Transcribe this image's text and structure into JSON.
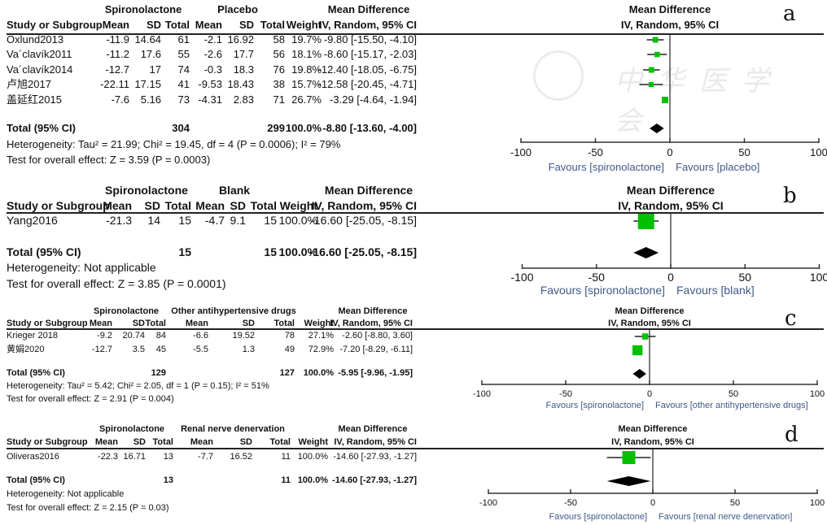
{
  "watermark": "中华医学会",
  "panels": [
    {
      "label": "a",
      "group1": "Spironolactone",
      "group2": "Placebo",
      "effect_header": "Mean Difference",
      "columns": [
        "Study or Subgroup",
        "Mean",
        "SD",
        "Total",
        "Mean",
        "SD",
        "Total",
        "Weight",
        "IV, Random, 95% CI"
      ],
      "rows": [
        [
          "Oxlund2013",
          "-11.9",
          "14.64",
          "61",
          "-2.1",
          "16.92",
          "58",
          "19.7%",
          "-9.80 [-15.50, -4.10]"
        ],
        [
          "Va´clavík2011",
          "-11.2",
          "17.6",
          "55",
          "-2.6",
          "17.7",
          "56",
          "18.1%",
          "-8.60 [-15.17, -2.03]"
        ],
        [
          "Va´clavík2014",
          "-12.7",
          "17",
          "74",
          "-0.3",
          "18.3",
          "76",
          "19.8%",
          "-12.40 [-18.05, -6.75]"
        ],
        [
          "卢旭2017",
          "-22.11",
          "17.15",
          "41",
          "-9.53",
          "18.43",
          "38",
          "15.7%",
          "-12.58 [-20.45, -4.71]"
        ],
        [
          "盖延红2015",
          "-7.6",
          "5.16",
          "73",
          "-4.31",
          "2.83",
          "71",
          "26.7%",
          "-3.29 [-4.64, -1.94]"
        ]
      ],
      "total": {
        "label": "Total (95% CI)",
        "n1": "304",
        "n2": "299",
        "weight": "100.0%",
        "md": "-8.80 [-13.60, -4.00]"
      },
      "heterogeneity": "Heterogeneity: Tau² = 21.99; Chi² = 19.45, df = 4 (P = 0.0006); I² = 79%",
      "overall": "Test for overall effect: Z = 3.59 (P = 0.0003)"
    },
    {
      "label": "b",
      "group1": "Spironolactone",
      "group2": "Blank",
      "effect_header": "Mean Difference",
      "columns": [
        "Study or Subgroup",
        "Mean",
        "SD",
        "Total",
        "Mean",
        "SD",
        "Total",
        "Weight",
        "IV, Random, 95% CI"
      ],
      "rows": [
        [
          "Yang2016",
          "-21.3",
          "14",
          "15",
          "-4.7",
          "9.1",
          "15",
          "100.0%",
          "-16.60 [-25.05, -8.15]"
        ]
      ],
      "total": {
        "label": "Total (95% CI)",
        "n1": "15",
        "n2": "15",
        "weight": "100.0%",
        "md": "-16.60 [-25.05, -8.15]"
      },
      "heterogeneity": "Heterogeneity: Not applicable",
      "overall": "Test for overall effect: Z = 3.85 (P = 0.0001)"
    },
    {
      "label": "c",
      "group1": "Spironolactone",
      "group2": "Other antihypertensive drugs",
      "effect_header": "Mean Difference",
      "columns": [
        "Study or Subgroup",
        "Mean",
        "SD",
        "Total",
        "Mean",
        "SD",
        "Total",
        "Weight",
        "IV, Random, 95% CI"
      ],
      "rows": [
        [
          "Krieger 2018",
          "-9.2",
          "20.74",
          "84",
          "-6.6",
          "19.52",
          "78",
          "27.1%",
          "-2.60 [-8.80, 3.60]"
        ],
        [
          "黄娟2020",
          "-12.7",
          "3.5",
          "45",
          "-5.5",
          "1.3",
          "49",
          "72.9%",
          "-7.20 [-8.29, -6.11]"
        ]
      ],
      "total": {
        "label": "Total (95% CI)",
        "n1": "129",
        "n2": "127",
        "weight": "100.0%",
        "md": "-5.95 [-9.96, -1.95]"
      },
      "heterogeneity": "Heterogeneity: Tau² = 5.42; Chi² = 2.05, df = 1 (P = 0.15); I² = 51%",
      "overall": "Test for overall effect: Z = 2.91 (P = 0.004)"
    },
    {
      "label": "d",
      "group1": "Spironolactone",
      "group2": "Renal nerve denervation",
      "effect_header": "Mean Difference",
      "columns": [
        "Study or Subgroup",
        "Mean",
        "SD",
        "Total",
        "Mean",
        "SD",
        "Total",
        "Weight",
        "IV, Random, 95% CI"
      ],
      "rows": [
        [
          "Oliveras2016",
          "-22.3",
          "16.71",
          "13",
          "-7.7",
          "16.52",
          "11",
          "100.0%",
          "-14.60 [-27.93, -1.27]"
        ]
      ],
      "total": {
        "label": "Total (95% CI)",
        "n1": "13",
        "n2": "11",
        "weight": "100.0%",
        "md": "-14.60 [-27.93, -1.27]"
      },
      "heterogeneity": "Heterogeneity: Not applicable",
      "overall": "Test for overall effect: Z = 2.15 (P = 0.03)"
    }
  ],
  "chart_data": [
    {
      "type": "forest",
      "label": "a",
      "title": "Mean Difference",
      "subtitle": "IV, Random, 95% CI",
      "xlim": [
        -100,
        100
      ],
      "ticks": [
        "-100",
        "-50",
        "0",
        "50",
        "100"
      ],
      "tick_values": [
        -100,
        -50,
        0,
        50,
        100
      ],
      "favours_left": "Favours [spironolactone]",
      "favours_right": "Favours [placebo]",
      "studies": [
        {
          "name": "Oxlund2013",
          "md": -9.8,
          "lo": -15.5,
          "hi": -4.1,
          "weight": 19.7
        },
        {
          "name": "Va´clavík2011",
          "md": -8.6,
          "lo": -15.17,
          "hi": -2.03,
          "weight": 18.1
        },
        {
          "name": "Va´clavík2014",
          "md": -12.4,
          "lo": -18.05,
          "hi": -6.75,
          "weight": 19.8
        },
        {
          "name": "卢旭2017",
          "md": -12.58,
          "lo": -20.45,
          "hi": -4.71,
          "weight": 15.7
        },
        {
          "name": "盖延红2015",
          "md": -3.29,
          "lo": -4.64,
          "hi": -1.94,
          "weight": 26.7
        }
      ],
      "pooled": {
        "md": -8.8,
        "lo": -13.6,
        "hi": -4.0
      }
    },
    {
      "type": "forest",
      "label": "b",
      "title": "Mean Difference",
      "subtitle": "IV, Random, 95% CI",
      "xlim": [
        -100,
        100
      ],
      "ticks": [
        "-100",
        "-50",
        "0",
        "50",
        "100"
      ],
      "tick_values": [
        -100,
        -50,
        0,
        50,
        100
      ],
      "favours_left": "Favours [spironolactone]",
      "favours_right": "Favours [blank]",
      "studies": [
        {
          "name": "Yang2016",
          "md": -16.6,
          "lo": -25.05,
          "hi": -8.15,
          "weight": 100.0
        }
      ],
      "pooled": {
        "md": -16.6,
        "lo": -25.05,
        "hi": -8.15
      }
    },
    {
      "type": "forest",
      "label": "c",
      "title": "Mean Difference",
      "subtitle": "IV, Random, 95% CI",
      "xlim": [
        -100,
        100
      ],
      "ticks": [
        "-100",
        "-50",
        "0",
        "50",
        "100"
      ],
      "tick_values": [
        -100,
        -50,
        0,
        50,
        100
      ],
      "favours_left": "Favours [spironolactone]",
      "favours_right": "Favours [other antihypertensive drugs]",
      "studies": [
        {
          "name": "Krieger 2018",
          "md": -2.6,
          "lo": -8.8,
          "hi": 3.6,
          "weight": 27.1
        },
        {
          "name": "黄娟2020",
          "md": -7.2,
          "lo": -8.29,
          "hi": -6.11,
          "weight": 72.9
        }
      ],
      "pooled": {
        "md": -5.95,
        "lo": -9.96,
        "hi": -1.95
      }
    },
    {
      "type": "forest",
      "label": "d",
      "title": "Mean Difference",
      "subtitle": "IV, Random, 95% CI",
      "xlim": [
        -100,
        100
      ],
      "ticks": [
        "-100",
        "-50",
        "0",
        "50",
        "100"
      ],
      "tick_values": [
        -100,
        -50,
        0,
        50,
        100
      ],
      "favours_left": "Favours [spironolactone]",
      "favours_right": "Favours [renal nerve denervation]",
      "studies": [
        {
          "name": "Oliveras2016",
          "md": -14.6,
          "lo": -27.93,
          "hi": -1.27,
          "weight": 100.0
        }
      ],
      "pooled": {
        "md": -14.6,
        "lo": -27.93,
        "hi": -1.27
      }
    }
  ]
}
